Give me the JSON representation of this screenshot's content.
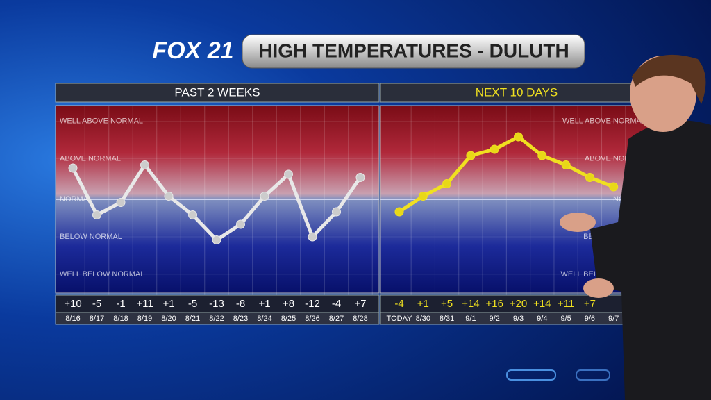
{
  "header": {
    "logo": "FOX 21",
    "title": "HIGH TEMPERATURES - DULUTH"
  },
  "chart_data": [
    {
      "type": "line",
      "title": "PAST 2 WEEKS",
      "categories": [
        "8/16",
        "8/17",
        "8/18",
        "8/19",
        "8/20",
        "8/21",
        "8/22",
        "8/23",
        "8/24",
        "8/25",
        "8/26",
        "8/27",
        "8/28"
      ],
      "values": [
        10,
        -5,
        -1,
        11,
        1,
        -5,
        -13,
        -8,
        1,
        8,
        -12,
        -4,
        7
      ],
      "value_labels": [
        "+10",
        "-5",
        "-1",
        "+11",
        "+1",
        "-5",
        "-13",
        "-8",
        "+1",
        "+8",
        "-12",
        "-4",
        "+7"
      ],
      "color": "#e8e8e8",
      "ylim": [
        -30,
        30
      ],
      "yticks": [
        {
          "value": 25,
          "label": "WELL ABOVE NORMAL"
        },
        {
          "value": 13,
          "label": "ABOVE NORMAL"
        },
        {
          "value": 0,
          "label": "NORMAL"
        },
        {
          "value": -12,
          "label": "BELOW NORMAL"
        },
        {
          "value": -24,
          "label": "WELL BELOW NORMAL"
        }
      ]
    },
    {
      "type": "line",
      "title": "NEXT 10 DAYS",
      "categories": [
        "TODAY",
        "8/30",
        "8/31",
        "9/1",
        "9/2",
        "9/3",
        "9/4",
        "9/5",
        "9/6",
        "9/7"
      ],
      "values": [
        -4,
        1,
        5,
        14,
        16,
        20,
        14,
        11,
        7,
        4
      ],
      "value_labels": [
        "-4",
        "+1",
        "+5",
        "+14",
        "+16",
        "+20",
        "+14",
        "+11",
        "+7",
        null
      ],
      "color": "#f0e020",
      "ylim": [
        -30,
        30
      ],
      "yticks": [
        {
          "value": 25,
          "label": "WELL ABOVE NORMAL"
        },
        {
          "value": 13,
          "label": "ABOVE NORMAL"
        },
        {
          "value": 0,
          "label": "NORMAL"
        },
        {
          "value": -12,
          "label": "BELOW NORMAL"
        },
        {
          "value": -24,
          "label": "WELL BELOW NORMAL"
        }
      ]
    }
  ]
}
